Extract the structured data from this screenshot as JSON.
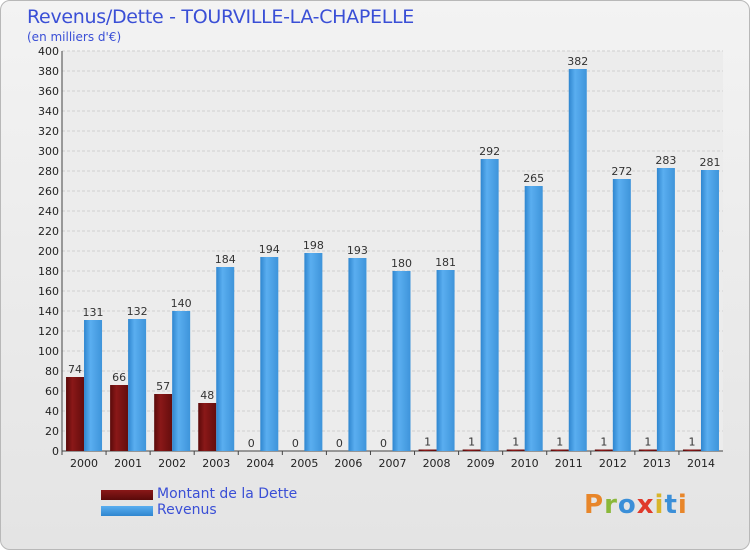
{
  "page": {
    "title": "Revenus/Dette - TOURVILLE-LA-CHAPELLE",
    "subtitle": "(en milliers d'€)",
    "logo": "Proxiti"
  },
  "colors": {
    "dette": "#6b0f0f",
    "revenus": "#4a9fe0",
    "text": "#3a4fd6"
  },
  "chart_data": {
    "type": "bar",
    "title": "Revenus/Dette - TOURVILLE-LA-CHAPELLE",
    "subtitle": "(en milliers d'€)",
    "categories": [
      "2000",
      "2001",
      "2002",
      "2003",
      "2004",
      "2005",
      "2006",
      "2007",
      "2008",
      "2009",
      "2010",
      "2011",
      "2012",
      "2013",
      "2014"
    ],
    "series": [
      {
        "name": "Montant de la Dette",
        "color": "#6b0f0f",
        "values": [
          74,
          66,
          57,
          48,
          0,
          0,
          0,
          0,
          1,
          1,
          1,
          1,
          1,
          1,
          1
        ]
      },
      {
        "name": "Revenus",
        "color": "#4a9fe0",
        "values": [
          131,
          132,
          140,
          184,
          194,
          198,
          193,
          180,
          181,
          292,
          265,
          382,
          272,
          283,
          281
        ]
      }
    ],
    "yticks": [
      0,
      20,
      40,
      60,
      80,
      100,
      120,
      140,
      160,
      180,
      200,
      220,
      240,
      260,
      280,
      300,
      320,
      340,
      360,
      380,
      400
    ],
    "ylim": [
      0,
      400
    ],
    "grid": true,
    "legend": "bottom-left"
  }
}
